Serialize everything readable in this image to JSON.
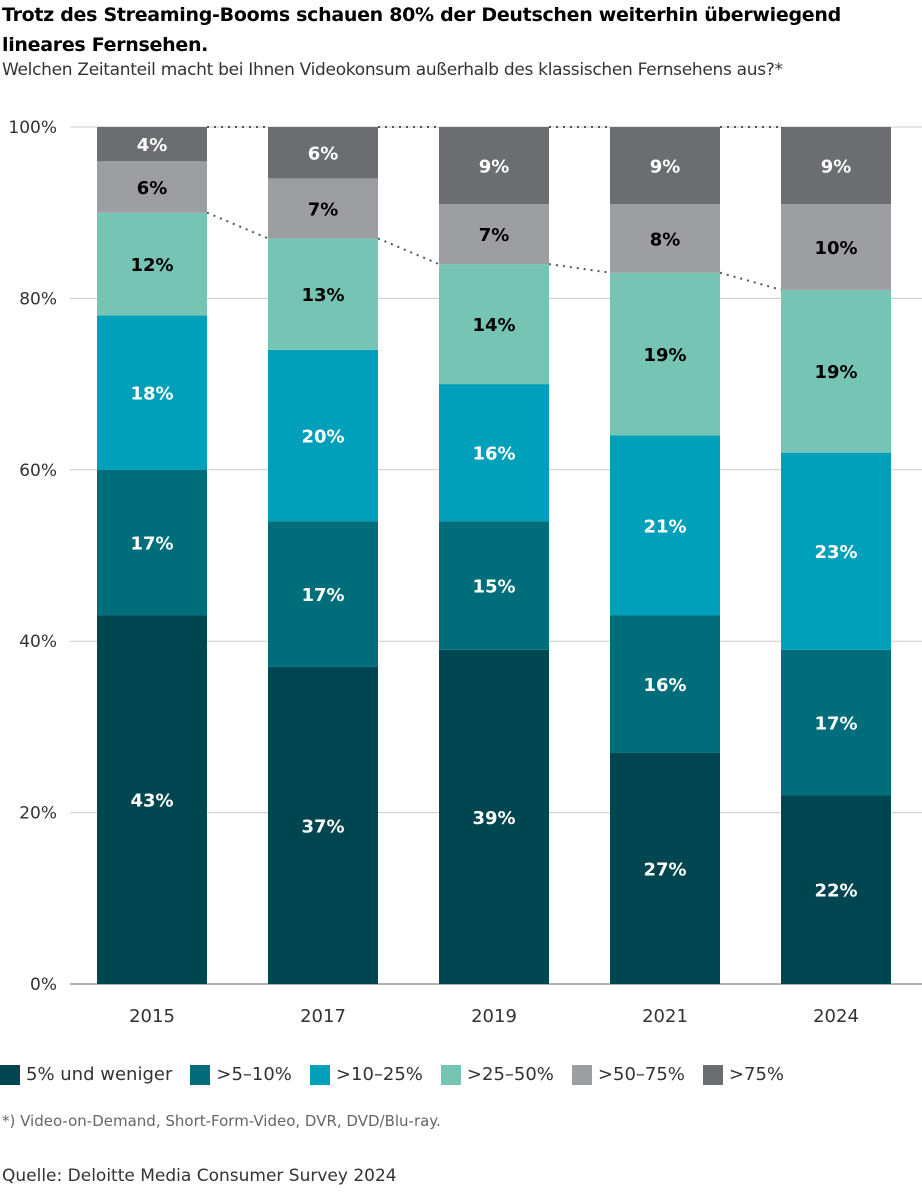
{
  "title": "Trotz des Streaming-Booms schauen 80% der Deutschen weiterhin überwiegend lineares Fernsehen.",
  "subtitle": "Welchen Zeitanteil macht bei Ihnen Videokonsum außerhalb des klassischen Fernsehens aus?*",
  "footnote": "*) Video-on-Demand, Short-Form-Video, DVR, DVD/Blu-ray.",
  "source": "Quelle: Deloitte Media Consumer Survey 2024",
  "chart_data": {
    "type": "bar",
    "stacked": true,
    "categories": [
      "2015",
      "2017",
      "2019",
      "2021",
      "2024"
    ],
    "ylim": [
      0,
      100
    ],
    "yticks": [
      "0%",
      "20%",
      "40%",
      "60%",
      "80%",
      "100%"
    ],
    "grid": true,
    "legend_placement": "bottom",
    "series": [
      {
        "name": "5% und weniger",
        "color": "#004650",
        "label_color": "#ffffff",
        "values": [
          43,
          37,
          39,
          27,
          22
        ]
      },
      {
        "name": ">5–10%",
        "color": "#006e7a",
        "label_color": "#ffffff",
        "values": [
          17,
          17,
          15,
          16,
          17
        ]
      },
      {
        "name": ">10–25%",
        "color": "#009fba",
        "label_color": "#ffffff",
        "values": [
          18,
          20,
          16,
          21,
          23
        ]
      },
      {
        "name": ">25–50%",
        "color": "#76c5b4",
        "label_color": "#000000",
        "values": [
          12,
          13,
          14,
          19,
          19
        ]
      },
      {
        "name": ">50–75%",
        "color": "#9c9ea1",
        "label_color": "#000000",
        "values": [
          6,
          7,
          7,
          8,
          10
        ]
      },
      {
        "name": ">75%",
        "color": "#6c6d71",
        "label_color": "#ffffff",
        "values": [
          4,
          6,
          9,
          9,
          9
        ]
      }
    ]
  }
}
